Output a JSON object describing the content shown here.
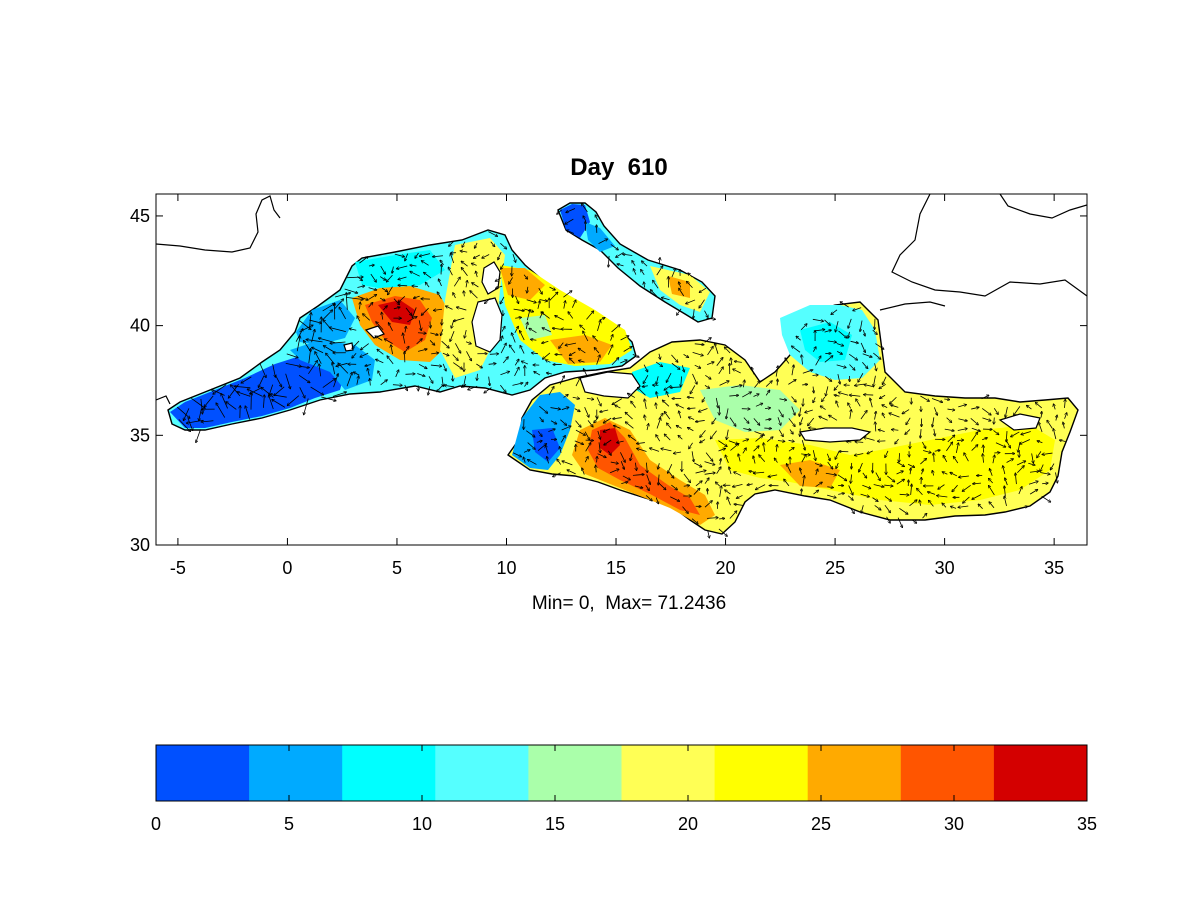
{
  "title": "Day  610",
  "subtitle": "Min= 0,  Max= 71.2436",
  "map": {
    "lon_range": [
      -6,
      36.5
    ],
    "lat_range": [
      30,
      46
    ],
    "x_ticks": [
      "-5",
      "0",
      "5",
      "10",
      "15",
      "20",
      "25",
      "30",
      "35"
    ],
    "x_tick_values": [
      -5,
      0,
      5,
      10,
      15,
      20,
      25,
      30,
      35
    ],
    "y_ticks": [
      "30",
      "35",
      "40",
      "45"
    ],
    "y_tick_values": [
      30,
      35,
      40,
      45
    ]
  },
  "colorbar": {
    "ticks": [
      "0",
      "5",
      "10",
      "15",
      "20",
      "25",
      "30",
      "35"
    ],
    "tick_values": [
      0,
      5,
      10,
      15,
      20,
      25,
      30,
      35
    ],
    "range": [
      0,
      35
    ],
    "colors": [
      "#0050ff",
      "#00aaff",
      "#00ffff",
      "#55ffff",
      "#aaffaa",
      "#ffff55",
      "#ffff00",
      "#ffaa00",
      "#ff5500",
      "#d40000"
    ]
  }
}
